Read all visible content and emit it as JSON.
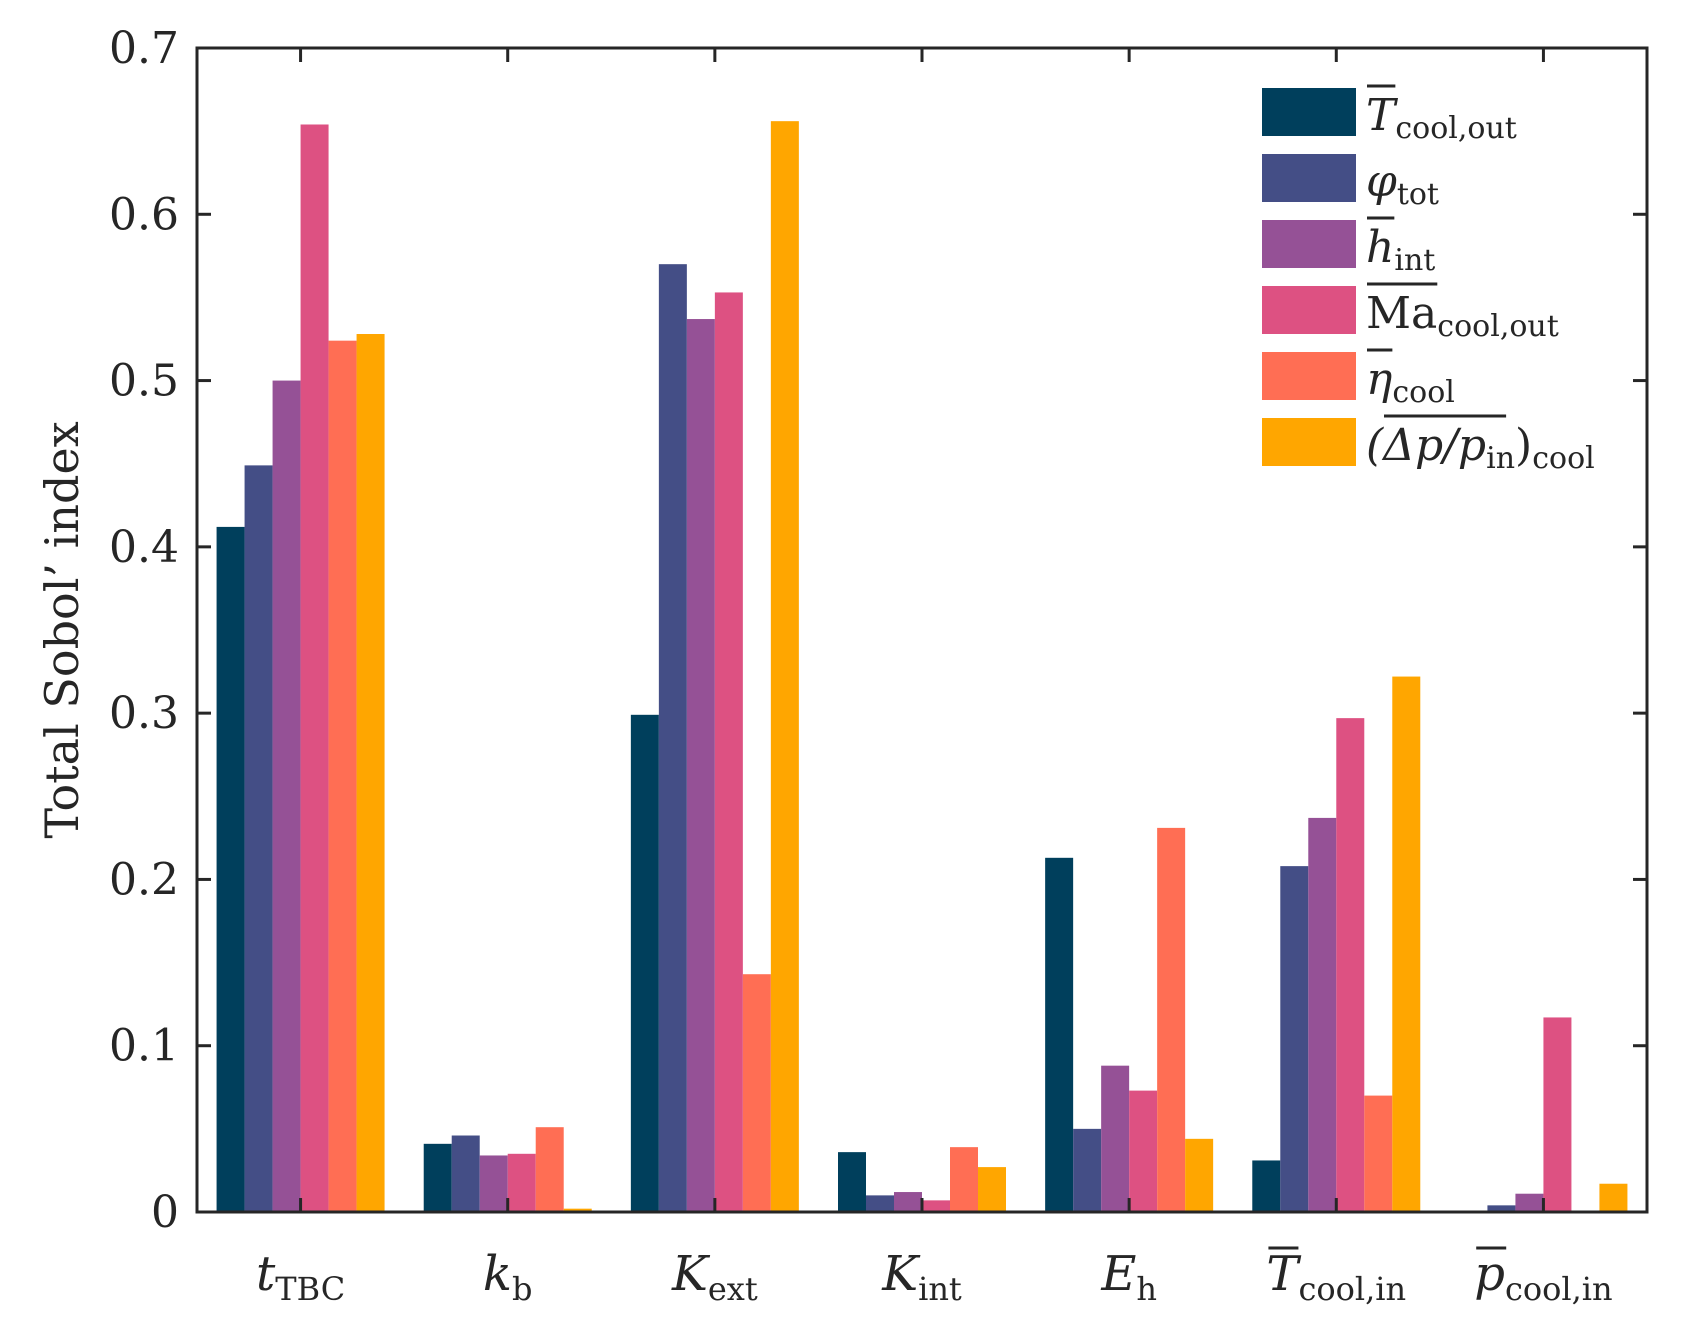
{
  "chart_data": {
    "type": "bar",
    "title": "",
    "xlabel": "",
    "ylabel": "Total Sobol’ index",
    "ylim": [
      0,
      0.7
    ],
    "yticks": [
      "0",
      "0.1",
      "0.2",
      "0.3",
      "0.4",
      "0.5",
      "0.6",
      "0.7"
    ],
    "grid": false,
    "legend_position": "top-right",
    "categories": [
      {
        "main": "t",
        "sub": "TBC",
        "overline": false
      },
      {
        "main": "k",
        "sub": "b",
        "overline": false
      },
      {
        "main": "K",
        "sub": "ext",
        "overline": false
      },
      {
        "main": "K",
        "sub": "int",
        "overline": false
      },
      {
        "main": "E",
        "sub": "h",
        "overline": false
      },
      {
        "main": "T",
        "sub": "cool,in",
        "overline": true
      },
      {
        "main": "p",
        "sub": "cool,in",
        "overline": true
      }
    ],
    "series": [
      {
        "name": "T",
        "sub": "cool,out",
        "style": "italic",
        "overline": true,
        "color": "#003f5c",
        "values": [
          0.412,
          0.041,
          0.299,
          0.036,
          0.213,
          0.031,
          0.0
        ]
      },
      {
        "name": "φ",
        "sub": "tot",
        "style": "italic",
        "overline": false,
        "color": "#444e86",
        "values": [
          0.449,
          0.046,
          0.57,
          0.01,
          0.05,
          0.208,
          0.004
        ]
      },
      {
        "name": "h",
        "sub": "int",
        "style": "italic",
        "overline": true,
        "color": "#955196",
        "values": [
          0.5,
          0.034,
          0.537,
          0.012,
          0.088,
          0.237,
          0.011
        ]
      },
      {
        "name": "Ma",
        "sub": "cool,out",
        "style": "upright",
        "overline": true,
        "color": "#dd5182",
        "values": [
          0.654,
          0.035,
          0.553,
          0.007,
          0.073,
          0.297,
          0.117
        ]
      },
      {
        "name": "η",
        "sub": "cool",
        "style": "italic",
        "overline": true,
        "color": "#ff6e54",
        "values": [
          0.524,
          0.051,
          0.143,
          0.039,
          0.231,
          0.07,
          0.0
        ]
      },
      {
        "name": "(Δp/p",
        "sub2": "in",
        "close": ")",
        "sub": "cool",
        "style": "italic",
        "overline": false,
        "color": "#ffa600",
        "values": [
          0.528,
          0.002,
          0.656,
          0.027,
          0.044,
          0.322,
          0.017
        ]
      }
    ]
  }
}
